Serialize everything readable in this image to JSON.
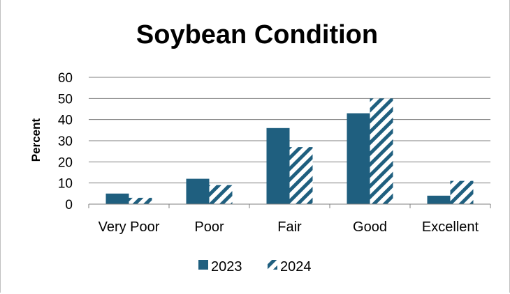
{
  "chart_data": {
    "type": "bar",
    "title": "Soybean Condition",
    "xlabel": "",
    "ylabel": "Percent",
    "categories": [
      "Very Poor",
      "Poor",
      "Fair",
      "Good",
      "Excellent"
    ],
    "series": [
      {
        "name": "2023",
        "values": [
          5,
          12,
          36,
          43,
          4
        ],
        "color": "#1f5f7f",
        "pattern": "solid"
      },
      {
        "name": "2024",
        "values": [
          3,
          9,
          27,
          50,
          11
        ],
        "color": "#1f5f7f",
        "pattern": "diagonal-stripes"
      }
    ],
    "ylim": [
      0,
      60
    ],
    "yticks": [
      0,
      10,
      20,
      30,
      40,
      50,
      60
    ],
    "grid": true,
    "legend": "bottom"
  }
}
